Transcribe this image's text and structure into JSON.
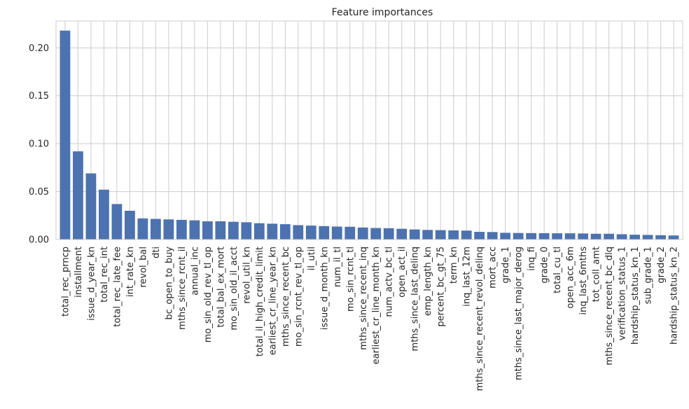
{
  "chart_data": {
    "type": "bar",
    "title": "Feature importances",
    "xlabel": "",
    "ylabel": "",
    "ylim": [
      0,
      0.228
    ],
    "yticks": [
      0.0,
      0.05,
      0.1,
      0.15,
      0.2
    ],
    "ytick_labels": [
      "0.00",
      "0.05",
      "0.10",
      "0.15",
      "0.20"
    ],
    "grid": true,
    "bar_color": "#4c72b0",
    "grid_color": "#cccccc",
    "categories": [
      "total_rec_prncp",
      "installment",
      "issue_d_year_kn",
      "total_rec_int",
      "total_rec_late_fee",
      "int_rate_kn",
      "revol_bal",
      "dti",
      "bc_open_to_buy",
      "mths_since_rcnt_il",
      "annual_inc",
      "mo_sin_old_rev_tl_op",
      "total_bal_ex_mort",
      "mo_sin_old_il_acct",
      "revol_util_kn",
      "total_il_high_credit_limit",
      "earliest_cr_line_year_kn",
      "mths_since_recent_bc",
      "mo_sin_rcnt_rev_tl_op",
      "il_util",
      "issue_d_month_kn",
      "num_il_tl",
      "mo_sin_rcnt_tl",
      "mths_since_recent_inq",
      "earliest_cr_line_month_kn",
      "num_actv_bc_tl",
      "open_act_il",
      "mths_since_last_delinq",
      "emp_length_kn",
      "percent_bc_gt_75",
      "term_kn",
      "inq_last_12m",
      "mths_since_recent_revol_delinq",
      "mort_acc",
      "grade_1",
      "mths_since_last_major_derog",
      "inq_fi",
      "grade_0",
      "total_cu_tl",
      "open_acc_6m",
      "inq_last_6mths",
      "tot_coll_amt",
      "mths_since_recent_bc_dlq",
      "verification_status_1",
      "hardship_status_kn_1",
      "sub_grade_1",
      "grade_2",
      "hardship_status_kn_2"
    ],
    "values": [
      0.218,
      0.092,
      0.069,
      0.052,
      0.037,
      0.03,
      0.022,
      0.0215,
      0.021,
      0.0205,
      0.02,
      0.019,
      0.019,
      0.0185,
      0.018,
      0.017,
      0.0165,
      0.016,
      0.015,
      0.0145,
      0.014,
      0.0135,
      0.0133,
      0.0125,
      0.012,
      0.0118,
      0.0112,
      0.0105,
      0.01,
      0.0098,
      0.0095,
      0.0093,
      0.008,
      0.0078,
      0.007,
      0.0068,
      0.0067,
      0.0066,
      0.0065,
      0.0065,
      0.0063,
      0.006,
      0.006,
      0.0055,
      0.005,
      0.0048,
      0.0045,
      0.0042
    ]
  }
}
